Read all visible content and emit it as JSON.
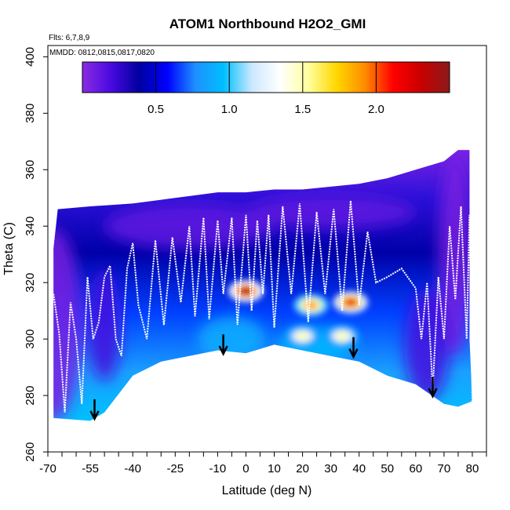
{
  "chart_data": {
    "type": "heatmap",
    "title": "ATOM1 Northbound H2O2_GMI",
    "annotations": {
      "flights": "Flts: 6,7,8,9",
      "dates": "MMDD: 0812,0815,0817,0820"
    },
    "xlabel": "Latitude (deg N)",
    "ylabel": "Theta (C)",
    "xlim": [
      -70,
      85
    ],
    "ylim": [
      260,
      404
    ],
    "x_ticks": [
      "-70",
      "-55",
      "-40",
      "-25",
      "-10",
      "0",
      "10",
      "20",
      "30",
      "40",
      "50",
      "60",
      "70",
      "80"
    ],
    "y_ticks": [
      "260",
      "280",
      "300",
      "320",
      "340",
      "360",
      "380",
      "400"
    ],
    "colorbar": {
      "min": 0.0,
      "max": 2.5,
      "ticks": [
        "0.5",
        "1.0",
        "1.5",
        "2.0"
      ],
      "colors": [
        "#8a2be2",
        "#4a0ae0",
        "#0000a0",
        "#0000ff",
        "#1e90ff",
        "#00bfff",
        "#cce8ff",
        "#ffffff",
        "#ffffa0",
        "#ffd700",
        "#ff8c00",
        "#ff0000",
        "#c80000",
        "#8b1a1a"
      ]
    },
    "top_boundary": [
      [
        -68,
        332
      ],
      [
        -66.5,
        346
      ],
      [
        -55,
        347
      ],
      [
        -40,
        348
      ],
      [
        -25,
        350
      ],
      [
        -10,
        352
      ],
      [
        0,
        352
      ],
      [
        10,
        353
      ],
      [
        20,
        353
      ],
      [
        30,
        354
      ],
      [
        40,
        355
      ],
      [
        50,
        357
      ],
      [
        60,
        360
      ],
      [
        70,
        363
      ],
      [
        75,
        367
      ],
      [
        79,
        367
      ],
      [
        79,
        300
      ],
      [
        80,
        278
      ]
    ],
    "bottom_boundary": [
      [
        -68,
        272
      ],
      [
        -55,
        271
      ],
      [
        -50,
        274
      ],
      [
        -40,
        287
      ],
      [
        -30,
        292
      ],
      [
        -10,
        296
      ],
      [
        0,
        295
      ],
      [
        10,
        298
      ],
      [
        20,
        296
      ],
      [
        30,
        294
      ],
      [
        40,
        292
      ],
      [
        50,
        287
      ],
      [
        60,
        284
      ],
      [
        70,
        277
      ],
      [
        75,
        276
      ]
    ],
    "hotspots": [
      {
        "lat": 0,
        "theta": 317,
        "value": 2.4
      },
      {
        "lat": 23,
        "theta": 312,
        "value": 1.9
      },
      {
        "lat": 37,
        "theta": 313,
        "value": 2.2
      },
      {
        "lat": 20,
        "theta": 301,
        "value": 1.5
      },
      {
        "lat": 34,
        "theta": 301,
        "value": 1.5
      }
    ],
    "flight_track": [
      [
        -68,
        316
      ],
      [
        -66,
        302
      ],
      [
        -64,
        274
      ],
      [
        -62,
        313
      ],
      [
        -60,
        300
      ],
      [
        -58,
        277
      ],
      [
        -56,
        322
      ],
      [
        -54,
        300
      ],
      [
        -52,
        306
      ],
      [
        -50,
        322
      ],
      [
        -48,
        326
      ],
      [
        -46,
        300
      ],
      [
        -44,
        294
      ],
      [
        -42,
        325
      ],
      [
        -40,
        334
      ],
      [
        -38,
        312
      ],
      [
        -35,
        300
      ],
      [
        -32,
        335
      ],
      [
        -29,
        305
      ],
      [
        -26,
        336
      ],
      [
        -23,
        313
      ],
      [
        -20,
        340
      ],
      [
        -18,
        308
      ],
      [
        -15,
        343
      ],
      [
        -13,
        307
      ],
      [
        -10,
        342
      ],
      [
        -8,
        316
      ],
      [
        -5,
        343
      ],
      [
        -3,
        305
      ],
      [
        0,
        344
      ],
      [
        2,
        310
      ],
      [
        4,
        342
      ],
      [
        6,
        316
      ],
      [
        8,
        344
      ],
      [
        10,
        304
      ],
      [
        13,
        347
      ],
      [
        16,
        316
      ],
      [
        19,
        348
      ],
      [
        22,
        306
      ],
      [
        25,
        345
      ],
      [
        28,
        316
      ],
      [
        31,
        346
      ],
      [
        34,
        310
      ],
      [
        37,
        349
      ],
      [
        40,
        312
      ],
      [
        43,
        338
      ],
      [
        46,
        320
      ],
      [
        50,
        322
      ],
      [
        55,
        325
      ],
      [
        60,
        318
      ],
      [
        62,
        300
      ],
      [
        64,
        320
      ],
      [
        66,
        282
      ],
      [
        68,
        322
      ],
      [
        70,
        300
      ],
      [
        72,
        340
      ],
      [
        74,
        314
      ],
      [
        76,
        347
      ],
      [
        78,
        300
      ],
      [
        79,
        344
      ],
      [
        80,
        278
      ]
    ],
    "arrows": [
      {
        "lat": -53.5,
        "theta": 272
      },
      {
        "lat": -8,
        "theta": 295
      },
      {
        "lat": 38,
        "theta": 294
      },
      {
        "lat": 66,
        "theta": 280
      }
    ],
    "grid": false,
    "legend": "colorbar top"
  }
}
